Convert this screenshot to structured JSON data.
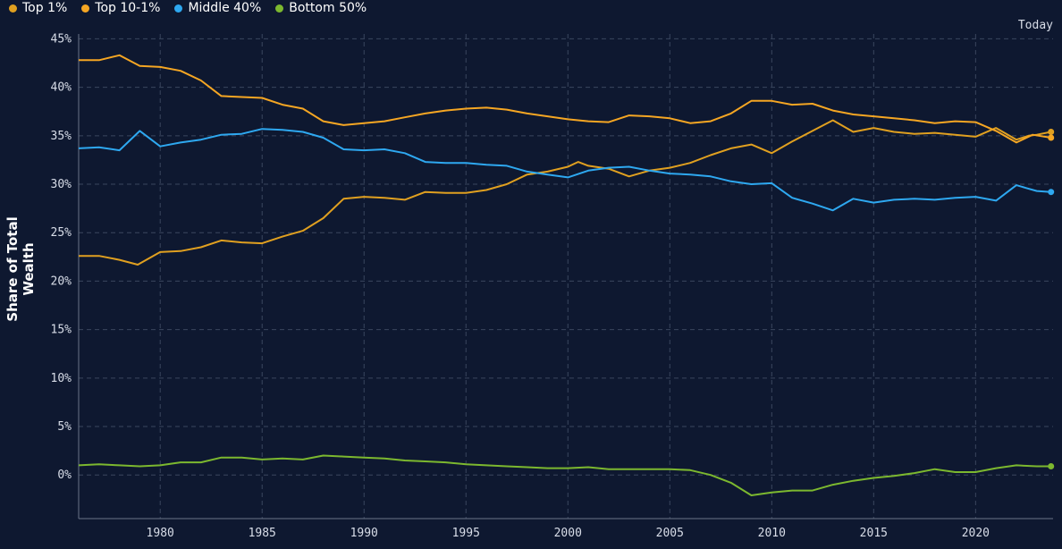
{
  "legend": [
    {
      "label": "Top 1%",
      "color": "#e0a020"
    },
    {
      "label": "Top 10-1%",
      "color": "#f5a623"
    },
    {
      "label": "Middle 40%",
      "color": "#2ea8f0"
    },
    {
      "label": "Bottom 50%",
      "color": "#7cb82f"
    }
  ],
  "today_label": "Today",
  "chart_data": {
    "type": "line",
    "ylabel": "Share of Total Wealth",
    "xlim": [
      1976,
      2023.8
    ],
    "ylim": [
      -4.5,
      45.5
    ],
    "x_ticks": [
      "1980",
      "1985",
      "1990",
      "1995",
      "2000",
      "2005",
      "2010",
      "2015",
      "2020"
    ],
    "y_ticks": [
      "45%",
      "40%",
      "35%",
      "30%",
      "25%",
      "20%",
      "15%",
      "10%",
      "5%",
      "0%"
    ],
    "grid": true,
    "series": [
      {
        "name": "Top 1%",
        "color": "#e0a020",
        "points": [
          [
            1976,
            22.6
          ],
          [
            1977,
            22.6
          ],
          [
            1978,
            22.2
          ],
          [
            1978.9,
            21.7
          ],
          [
            1980,
            23.0
          ],
          [
            1981,
            23.1
          ],
          [
            1982,
            23.5
          ],
          [
            1983,
            24.2
          ],
          [
            1984,
            24.0
          ],
          [
            1985,
            23.9
          ],
          [
            1986,
            24.6
          ],
          [
            1987,
            25.2
          ],
          [
            1988,
            26.5
          ],
          [
            1989,
            28.5
          ],
          [
            1990,
            28.7
          ],
          [
            1991,
            28.6
          ],
          [
            1992,
            28.4
          ],
          [
            1993,
            29.2
          ],
          [
            1994,
            29.1
          ],
          [
            1995,
            29.1
          ],
          [
            1996,
            29.4
          ],
          [
            1997,
            30.0
          ],
          [
            1998,
            31.0
          ],
          [
            1999,
            31.3
          ],
          [
            2000,
            31.8
          ],
          [
            2000.5,
            32.3
          ],
          [
            2001,
            31.9
          ],
          [
            2002,
            31.6
          ],
          [
            2003,
            30.8
          ],
          [
            2004,
            31.4
          ],
          [
            2005,
            31.7
          ],
          [
            2006,
            32.2
          ],
          [
            2007,
            33.0
          ],
          [
            2008,
            33.7
          ],
          [
            2009,
            34.1
          ],
          [
            2010,
            33.2
          ],
          [
            2011,
            34.4
          ],
          [
            2012,
            35.5
          ],
          [
            2013,
            36.6
          ],
          [
            2014,
            35.4
          ],
          [
            2015,
            35.8
          ],
          [
            2016,
            35.4
          ],
          [
            2017,
            35.2
          ],
          [
            2018,
            35.3
          ],
          [
            2019,
            35.1
          ],
          [
            2020,
            34.9
          ],
          [
            2021,
            35.8
          ],
          [
            2022,
            34.6
          ],
          [
            2022.6,
            35.0
          ],
          [
            2023,
            35.1
          ],
          [
            2023.7,
            35.4
          ]
        ]
      },
      {
        "name": "Top 10-1%",
        "color": "#f5a623",
        "points": [
          [
            1976,
            42.8
          ],
          [
            1977,
            42.8
          ],
          [
            1978,
            43.3
          ],
          [
            1979,
            42.2
          ],
          [
            1980,
            42.1
          ],
          [
            1981,
            41.7
          ],
          [
            1982,
            40.7
          ],
          [
            1983,
            39.1
          ],
          [
            1984,
            39.0
          ],
          [
            1985,
            38.9
          ],
          [
            1986,
            38.2
          ],
          [
            1987,
            37.8
          ],
          [
            1988,
            36.5
          ],
          [
            1989,
            36.1
          ],
          [
            1990,
            36.3
          ],
          [
            1991,
            36.5
          ],
          [
            1992,
            36.9
          ],
          [
            1993,
            37.3
          ],
          [
            1994,
            37.6
          ],
          [
            1995,
            37.8
          ],
          [
            1996,
            37.9
          ],
          [
            1997,
            37.7
          ],
          [
            1998,
            37.3
          ],
          [
            1999,
            37.0
          ],
          [
            2000,
            36.7
          ],
          [
            2001,
            36.5
          ],
          [
            2002,
            36.4
          ],
          [
            2003,
            37.1
          ],
          [
            2004,
            37.0
          ],
          [
            2005,
            36.8
          ],
          [
            2006,
            36.3
          ],
          [
            2007,
            36.5
          ],
          [
            2008,
            37.3
          ],
          [
            2009,
            38.6
          ],
          [
            2010,
            38.6
          ],
          [
            2011,
            38.2
          ],
          [
            2012,
            38.3
          ],
          [
            2013,
            37.6
          ],
          [
            2014,
            37.2
          ],
          [
            2015,
            37.0
          ],
          [
            2016,
            36.8
          ],
          [
            2017,
            36.6
          ],
          [
            2018,
            36.3
          ],
          [
            2019,
            36.5
          ],
          [
            2020,
            36.4
          ],
          [
            2021,
            35.5
          ],
          [
            2022,
            34.3
          ],
          [
            2022.8,
            35.1
          ],
          [
            2023.7,
            34.8
          ]
        ]
      },
      {
        "name": "Middle 40%",
        "color": "#2ea8f0",
        "points": [
          [
            1976,
            33.7
          ],
          [
            1977,
            33.8
          ],
          [
            1978,
            33.5
          ],
          [
            1979,
            35.5
          ],
          [
            1980,
            33.9
          ],
          [
            1981,
            34.3
          ],
          [
            1982,
            34.6
          ],
          [
            1983,
            35.1
          ],
          [
            1984,
            35.2
          ],
          [
            1985,
            35.7
          ],
          [
            1986,
            35.6
          ],
          [
            1987,
            35.4
          ],
          [
            1988,
            34.8
          ],
          [
            1989,
            33.6
          ],
          [
            1990,
            33.5
          ],
          [
            1991,
            33.6
          ],
          [
            1992,
            33.2
          ],
          [
            1993,
            32.3
          ],
          [
            1994,
            32.2
          ],
          [
            1995,
            32.2
          ],
          [
            1996,
            32.0
          ],
          [
            1997,
            31.9
          ],
          [
            1998,
            31.3
          ],
          [
            1999,
            31.0
          ],
          [
            2000,
            30.7
          ],
          [
            2001,
            31.4
          ],
          [
            2002,
            31.7
          ],
          [
            2003,
            31.8
          ],
          [
            2004,
            31.4
          ],
          [
            2005,
            31.1
          ],
          [
            2006,
            31.0
          ],
          [
            2007,
            30.8
          ],
          [
            2008,
            30.3
          ],
          [
            2009,
            30.0
          ],
          [
            2010,
            30.1
          ],
          [
            2011,
            28.6
          ],
          [
            2012,
            28.0
          ],
          [
            2013,
            27.3
          ],
          [
            2014,
            28.5
          ],
          [
            2015,
            28.1
          ],
          [
            2016,
            28.4
          ],
          [
            2017,
            28.5
          ],
          [
            2018,
            28.4
          ],
          [
            2019,
            28.6
          ],
          [
            2020,
            28.7
          ],
          [
            2021,
            28.3
          ],
          [
            2022,
            29.9
          ],
          [
            2022.5,
            29.6
          ],
          [
            2023,
            29.3
          ],
          [
            2023.7,
            29.2
          ]
        ]
      },
      {
        "name": "Bottom 50%",
        "color": "#7cb82f",
        "points": [
          [
            1976,
            1.0
          ],
          [
            1977,
            1.1
          ],
          [
            1978,
            1.0
          ],
          [
            1979,
            0.9
          ],
          [
            1980,
            1.0
          ],
          [
            1981,
            1.3
          ],
          [
            1982,
            1.3
          ],
          [
            1983,
            1.8
          ],
          [
            1984,
            1.8
          ],
          [
            1985,
            1.6
          ],
          [
            1986,
            1.7
          ],
          [
            1987,
            1.6
          ],
          [
            1988,
            2.0
          ],
          [
            1989,
            1.9
          ],
          [
            1990,
            1.8
          ],
          [
            1991,
            1.7
          ],
          [
            1992,
            1.5
          ],
          [
            1993,
            1.4
          ],
          [
            1994,
            1.3
          ],
          [
            1995,
            1.1
          ],
          [
            1996,
            1.0
          ],
          [
            1997,
            0.9
          ],
          [
            1998,
            0.8
          ],
          [
            1999,
            0.7
          ],
          [
            2000,
            0.7
          ],
          [
            2001,
            0.8
          ],
          [
            2002,
            0.6
          ],
          [
            2003,
            0.6
          ],
          [
            2004,
            0.6
          ],
          [
            2005,
            0.6
          ],
          [
            2006,
            0.5
          ],
          [
            2007,
            0.0
          ],
          [
            2008,
            -0.8
          ],
          [
            2009,
            -2.1
          ],
          [
            2010,
            -1.8
          ],
          [
            2011,
            -1.6
          ],
          [
            2012,
            -1.6
          ],
          [
            2013,
            -1.0
          ],
          [
            2014,
            -0.6
          ],
          [
            2015,
            -0.3
          ],
          [
            2016,
            -0.1
          ],
          [
            2017,
            0.2
          ],
          [
            2018,
            0.6
          ],
          [
            2019,
            0.3
          ],
          [
            2020,
            0.3
          ],
          [
            2021,
            0.7
          ],
          [
            2022,
            1.0
          ],
          [
            2023,
            0.9
          ],
          [
            2023.7,
            0.9
          ]
        ]
      }
    ]
  }
}
